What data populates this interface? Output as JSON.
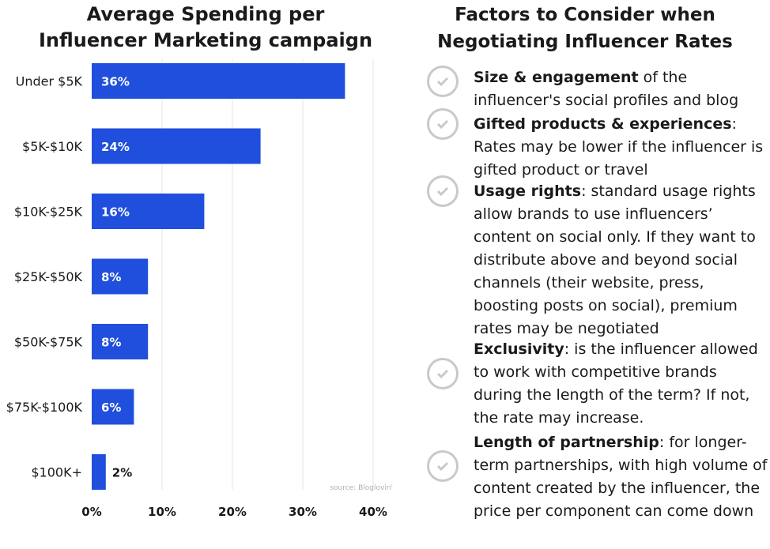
{
  "chart_data": {
    "type": "bar",
    "orientation": "horizontal",
    "title": "Average Spending per Influencer Marketing campaign",
    "categories": [
      "Under $5K",
      "$5K-$10K",
      "$10K-$25K",
      "$25K-$50K",
      "$50K-$75K",
      "$75K-$100K",
      "$100K+"
    ],
    "values": [
      36,
      24,
      16,
      8,
      8,
      6,
      2
    ],
    "value_labels": [
      "36%",
      "24%",
      "16%",
      "8%",
      "8%",
      "6%",
      "2%"
    ],
    "xticks": [
      0,
      10,
      20,
      30,
      40
    ],
    "xtick_labels": [
      "0%",
      "10%",
      "20%",
      "30%",
      "40%"
    ],
    "xlim": [
      0,
      42
    ],
    "grid": true,
    "bar_color": "#1f4fdc",
    "source": "source: Bloglovin'"
  },
  "factors": {
    "title": "Factors to Consider when Negotiating Influencer Rates",
    "items": [
      {
        "bold": "Size & engagement",
        "text": " of the influencer's social profiles and blog"
      },
      {
        "bold": "Gifted products & experiences",
        "text": ": Rates may be lower if the influencer is gifted product or travel"
      },
      {
        "bold": "Usage rights",
        "text": ": standard usage rights allow brands to use influencers’ content on social only. If they want to distribute above and beyond social channels (their website, press, boosting posts on social), premium rates may be negotiated"
      },
      {
        "bold": "Exclusivity",
        "text": ": is the influencer allowed to work with competitive brands during the length of the term? If not, the rate may increase."
      },
      {
        "bold": "Length of partnership",
        "text": ": for longer-term partnerships, with high volume of content created by the influencer, the price per component can come down"
      }
    ]
  }
}
